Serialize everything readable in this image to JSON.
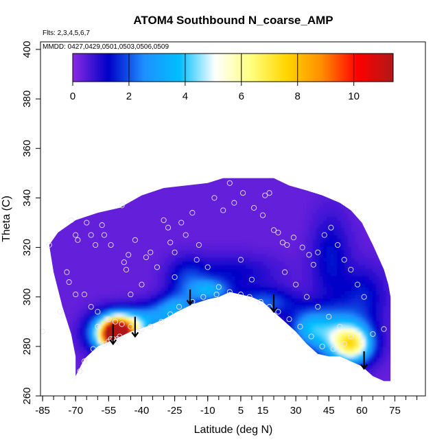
{
  "chart_data": {
    "type": "heatmap",
    "title": "ATOM4 Southbound N_coarse_AMP",
    "flights_label": "Flts: 2,3,4,5,6,7",
    "dates_label": "MMDD: 0427,0429,0501,0503,0506,0509",
    "xlabel": "Latitude (deg N)",
    "ylabel": "Theta (C)",
    "xlim": [
      -90,
      90
    ],
    "ylim": [
      260,
      405
    ],
    "xticks": [
      -85,
      -70,
      -55,
      -40,
      -25,
      -10,
      5,
      15,
      30,
      45,
      60,
      75
    ],
    "xtick_labels": [
      "-85",
      "-70",
      "-55",
      "-40",
      "-25",
      "-10",
      "5",
      "15",
      "30",
      "45",
      "60",
      "75"
    ],
    "yticks": [
      260,
      280,
      300,
      320,
      340,
      360,
      380,
      400
    ],
    "ytick_labels": [
      "260",
      "280",
      "300",
      "320",
      "340",
      "360",
      "380",
      "400"
    ],
    "colorbar": {
      "min": 0,
      "max": 11.4,
      "ticks": [
        0,
        2,
        4,
        6,
        8,
        10
      ],
      "tick_labels": [
        "0",
        "2",
        "4",
        "6",
        "8",
        "10"
      ],
      "colors": [
        "#8a2be2",
        "#0000c8",
        "#1e90ff",
        "#00bfff",
        "#ffffff",
        "#ffff80",
        "#ffd700",
        "#ff8c00",
        "#ff0000",
        "#b01818"
      ]
    },
    "field": {
      "upper_boundary": [
        [
          -82,
          321
        ],
        [
          -78,
          326
        ],
        [
          -70,
          331
        ],
        [
          -60,
          334
        ],
        [
          -50,
          336
        ],
        [
          -40,
          341
        ],
        [
          -30,
          344
        ],
        [
          -20,
          345
        ],
        [
          -10,
          346
        ],
        [
          -3,
          348
        ],
        [
          10,
          348
        ],
        [
          20,
          348
        ],
        [
          27,
          345
        ],
        [
          35,
          343
        ],
        [
          42,
          341
        ],
        [
          50,
          338
        ],
        [
          55,
          335
        ],
        [
          60,
          330
        ],
        [
          65,
          321
        ],
        [
          70,
          311
        ],
        [
          72,
          305
        ],
        [
          73,
          300
        ],
        [
          73,
          266
        ]
      ],
      "lower_boundary": [
        [
          -70,
          268
        ],
        [
          -66,
          275
        ],
        [
          -60,
          280
        ],
        [
          -52,
          283
        ],
        [
          -45,
          286
        ],
        [
          -38,
          288
        ],
        [
          -30,
          291
        ],
        [
          -24,
          294
        ],
        [
          -17,
          297
        ],
        [
          -10,
          299
        ],
        [
          -5,
          300
        ],
        [
          0,
          302
        ],
        [
          5,
          301
        ],
        [
          10,
          300
        ],
        [
          15,
          298
        ],
        [
          20,
          294
        ],
        [
          25,
          290
        ],
        [
          30,
          286
        ],
        [
          35,
          281
        ],
        [
          40,
          277
        ],
        [
          45,
          276
        ],
        [
          50,
          276
        ],
        [
          55,
          274
        ],
        [
          60,
          272
        ],
        [
          65,
          268
        ],
        [
          70,
          266
        ],
        [
          73,
          266
        ]
      ],
      "left_edge": [
        [
          -82,
          321
        ],
        [
          -80,
          310
        ],
        [
          -76,
          296
        ],
        [
          -72,
          285
        ],
        [
          -70,
          276
        ],
        [
          -70,
          268
        ]
      ],
      "blobs": [
        {
          "lat": -53,
          "theta": 284,
          "value": 10.2,
          "sx": 4,
          "sy": 4
        },
        {
          "lat": -50,
          "theta": 284,
          "value": 7.5,
          "sx": 5,
          "sy": 5
        },
        {
          "lat": -57,
          "theta": 285,
          "value": 5.0,
          "sx": 6,
          "sy": 5
        },
        {
          "lat": -45,
          "theta": 287,
          "value": 3.8,
          "sx": 6,
          "sy": 4
        },
        {
          "lat": 55,
          "theta": 280,
          "value": 6.2,
          "sx": 6,
          "sy": 5
        },
        {
          "lat": 48,
          "theta": 284,
          "value": 4.2,
          "sx": 9,
          "sy": 7
        },
        {
          "lat": 35,
          "theta": 287,
          "value": 3.0,
          "sx": 6,
          "sy": 5
        },
        {
          "lat": -10,
          "theta": 302,
          "value": 3.4,
          "sx": 6,
          "sy": 3
        },
        {
          "lat": -25,
          "theta": 295,
          "value": 3.0,
          "sx": 6,
          "sy": 4
        },
        {
          "lat": 15,
          "theta": 297,
          "value": 2.4,
          "sx": 10,
          "sy": 4
        },
        {
          "lat": -35,
          "theta": 291,
          "value": 2.6,
          "sx": 8,
          "sy": 4
        },
        {
          "lat": -20,
          "theta": 306,
          "value": 1.8,
          "sx": 6,
          "sy": 6
        },
        {
          "lat": 45,
          "theta": 315,
          "value": 1.6,
          "sx": 6,
          "sy": 12
        },
        {
          "lat": 60,
          "theta": 300,
          "value": 1.6,
          "sx": 7,
          "sy": 8
        },
        {
          "lat": 0,
          "theta": 309,
          "value": 1.4,
          "sx": 14,
          "sy": 5
        }
      ],
      "background_value": 0.35
    },
    "observations": [
      [
        -82,
        321
      ],
      [
        -73,
        306
      ],
      [
        -70,
        325
      ],
      [
        -69,
        323
      ],
      [
        -72,
        331
      ],
      [
        -65,
        330
      ],
      [
        -63,
        325
      ],
      [
        -61,
        321
      ],
      [
        -58,
        329
      ],
      [
        -57,
        325
      ],
      [
        -54,
        321
      ],
      [
        -49,
        337
      ],
      [
        -48,
        314
      ],
      [
        -47,
        311
      ],
      [
        -46,
        317
      ],
      [
        -43,
        323
      ],
      [
        -40,
        305
      ],
      [
        -38,
        316
      ],
      [
        -36,
        318
      ],
      [
        -33,
        312
      ],
      [
        -30,
        331
      ],
      [
        -28,
        328
      ],
      [
        -27,
        322
      ],
      [
        -25,
        308
      ],
      [
        -22,
        330
      ],
      [
        -20,
        325
      ],
      [
        -17,
        334
      ],
      [
        -14,
        321
      ],
      [
        -10,
        312
      ],
      [
        -7,
        340
      ],
      [
        -3,
        335
      ],
      [
        0,
        346
      ],
      [
        2,
        338
      ],
      [
        6,
        342
      ],
      [
        11,
        336
      ],
      [
        15,
        333
      ],
      [
        16,
        341
      ],
      [
        18,
        342
      ],
      [
        20,
        327
      ],
      [
        22,
        326
      ],
      [
        24,
        322
      ],
      [
        26,
        321
      ],
      [
        29,
        324
      ],
      [
        33,
        320
      ],
      [
        36,
        317
      ],
      [
        38,
        313
      ],
      [
        40,
        318
      ],
      [
        43,
        325
      ],
      [
        46,
        328
      ],
      [
        49,
        321
      ],
      [
        52,
        315
      ],
      [
        55,
        311
      ],
      [
        58,
        305
      ],
      [
        61,
        300
      ],
      [
        -70,
        301
      ],
      [
        -66,
        301
      ],
      [
        -63,
        296
      ],
      [
        -60,
        294
      ],
      [
        -55,
        291
      ],
      [
        -52,
        290
      ],
      [
        -49,
        289
      ],
      [
        -45,
        288
      ],
      [
        -40,
        287
      ],
      [
        -36,
        288
      ],
      [
        -31,
        290
      ],
      [
        -27,
        293
      ],
      [
        -23,
        296
      ],
      [
        -17,
        298
      ],
      [
        -12,
        300
      ],
      [
        -6,
        301
      ],
      [
        0,
        302
      ],
      [
        5,
        301
      ],
      [
        9,
        300
      ],
      [
        14,
        298
      ],
      [
        18,
        296
      ],
      [
        22,
        294
      ],
      [
        27,
        291
      ],
      [
        32,
        288
      ],
      [
        37,
        284
      ],
      [
        42,
        280
      ],
      [
        47,
        279
      ],
      [
        52,
        281
      ],
      [
        -55,
        282
      ],
      [
        -54,
        283
      ],
      [
        -53,
        283
      ],
      [
        -51,
        283
      ],
      [
        -50,
        284
      ],
      [
        -57,
        281
      ],
      [
        -62,
        279
      ],
      [
        -66,
        274
      ],
      [
        -68,
        270
      ],
      [
        -60,
        288
      ],
      [
        -45,
        301
      ],
      [
        -25,
        318
      ],
      [
        -15,
        315
      ],
      [
        -5,
        304
      ],
      [
        5,
        315
      ],
      [
        10,
        307
      ],
      [
        25,
        310
      ],
      [
        30,
        305
      ],
      [
        35,
        300
      ],
      [
        40,
        296
      ],
      [
        45,
        292
      ],
      [
        50,
        288
      ],
      [
        55,
        284
      ],
      [
        60,
        282
      ],
      [
        65,
        285
      ],
      [
        70,
        287
      ],
      [
        -85,
        286
      ],
      [
        -77,
        294
      ],
      [
        -74,
        310
      ]
    ],
    "arrows": [
      {
        "lat": -53,
        "theta_from": 289,
        "theta_to": 281
      },
      {
        "lat": -43,
        "theta_from": 292,
        "theta_to": 284
      },
      {
        "lat": -18,
        "theta_from": 303,
        "theta_to": 297
      },
      {
        "lat": 20,
        "theta_from": 301,
        "theta_to": 294
      },
      {
        "lat": 61,
        "theta_from": 278,
        "theta_to": 271
      }
    ]
  }
}
